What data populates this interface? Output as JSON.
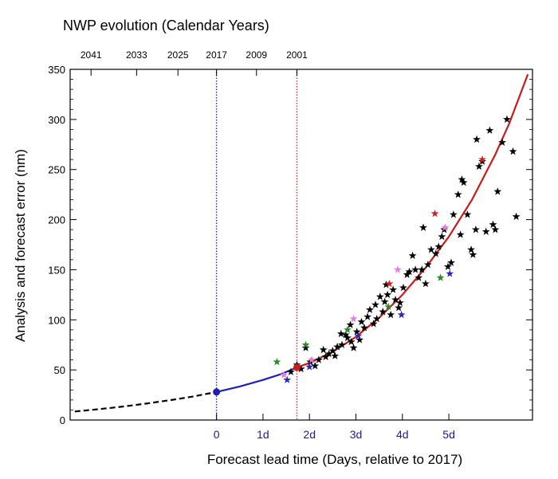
{
  "chart_data": {
    "type": "scatter",
    "title": "NWP evolution (Calendar Years)",
    "xlabel": "Forecast lead time (Days, relative to 2017)",
    "ylabel": "Analysis and forecast error (nm)",
    "xlim": [
      -3.15,
      6.8
    ],
    "ylim": [
      0,
      350
    ],
    "grid": false,
    "y_ticks": [
      "0",
      "50",
      "100",
      "150",
      "200",
      "250",
      "300",
      "350"
    ],
    "x_ticks": [
      {
        "value": 0,
        "label": "0"
      },
      {
        "value": 1,
        "label": "1d"
      },
      {
        "value": 2,
        "label": "2d"
      },
      {
        "value": 3,
        "label": "3d"
      },
      {
        "value": 4,
        "label": "4d"
      },
      {
        "value": 5,
        "label": "5d"
      }
    ],
    "top_axis_ticks": [
      {
        "value": -2.7,
        "label": "2041"
      },
      {
        "value": -1.72,
        "label": "2033"
      },
      {
        "value": -0.83,
        "label": "2025"
      },
      {
        "value": 0,
        "label": "2017"
      },
      {
        "value": 0.86,
        "label": "2009"
      },
      {
        "value": 1.73,
        "label": "2001"
      }
    ],
    "colors": {
      "past_curve": "#000000",
      "recent_curve": "#1f1fb4",
      "forecast_curve": "#cc1a1a",
      "marker_2017": "#1f1fb4",
      "marker_2001": "#cc1a1a",
      "vline_2017": "#2a2aa8",
      "vline_2001": "#cc3333",
      "lead_tick_labels": "#1a1a99"
    },
    "vertical_lines": [
      {
        "x": 0,
        "year": "2017",
        "color": "#2a2aa8"
      },
      {
        "x": 1.73,
        "year": "2001",
        "color": "#cc3333"
      }
    ],
    "series": [
      {
        "type": "line",
        "style": "dashed",
        "color": "#000000",
        "x": [
          -3.05,
          -2.5,
          -2.0,
          -1.5,
          -1.0,
          -0.5,
          0.0
        ],
        "y": [
          8.5,
          11.0,
          13.5,
          16.5,
          19.8,
          23.5,
          28.0
        ]
      },
      {
        "type": "line",
        "style": "solid",
        "color": "#1f1fb4",
        "x": [
          0.0,
          0.5,
          1.0,
          1.4,
          1.73
        ],
        "y": [
          28.0,
          33.5,
          40.0,
          46.0,
          52.5
        ]
      },
      {
        "type": "line",
        "style": "solid",
        "color": "#cc1a1a",
        "x": [
          1.73,
          2.0,
          2.5,
          3.0,
          3.5,
          4.0,
          4.5,
          5.0,
          5.5,
          6.0,
          6.3,
          6.7
        ],
        "y": [
          52.5,
          57.0,
          68.0,
          83.0,
          102.0,
          125.0,
          152.0,
          183.0,
          220.0,
          265.0,
          296.0,
          345.0
        ]
      },
      {
        "type": "scatter",
        "marker": "star",
        "color": "#000000",
        "points": [
          [
            1.6,
            48
          ],
          [
            1.73,
            55
          ],
          [
            1.82,
            51
          ],
          [
            1.92,
            72
          ],
          [
            2.02,
            58
          ],
          [
            2.12,
            54
          ],
          [
            2.2,
            60
          ],
          [
            2.3,
            70
          ],
          [
            2.35,
            63
          ],
          [
            2.42,
            66
          ],
          [
            2.5,
            69
          ],
          [
            2.55,
            64
          ],
          [
            2.6,
            73
          ],
          [
            2.7,
            75
          ],
          [
            2.78,
            85
          ],
          [
            2.82,
            82
          ],
          [
            2.9,
            78
          ],
          [
            2.95,
            72
          ],
          [
            3.02,
            88
          ],
          [
            3.08,
            80
          ],
          [
            3.12,
            98
          ],
          [
            3.18,
            92
          ],
          [
            3.25,
            103
          ],
          [
            3.3,
            110
          ],
          [
            3.38,
            96
          ],
          [
            3.42,
            115
          ],
          [
            3.45,
            101
          ],
          [
            3.52,
            123
          ],
          [
            3.58,
            108
          ],
          [
            3.62,
            118
          ],
          [
            3.68,
            125
          ],
          [
            3.75,
            105
          ],
          [
            3.8,
            130
          ],
          [
            3.85,
            120
          ],
          [
            3.95,
            117
          ],
          [
            4.02,
            132
          ],
          [
            4.1,
            145
          ],
          [
            4.15,
            148
          ],
          [
            4.22,
            164
          ],
          [
            4.28,
            150
          ],
          [
            4.35,
            142
          ],
          [
            4.42,
            150
          ],
          [
            4.5,
            136
          ],
          [
            4.55,
            155
          ],
          [
            4.62,
            170
          ],
          [
            4.72,
            166
          ],
          [
            4.78,
            173
          ],
          [
            4.85,
            183
          ],
          [
            4.9,
            190
          ],
          [
            4.98,
            153
          ],
          [
            5.05,
            157
          ],
          [
            5.1,
            205
          ],
          [
            5.2,
            225
          ],
          [
            5.28,
            240
          ],
          [
            5.32,
            237
          ],
          [
            5.4,
            205
          ],
          [
            5.48,
            170
          ],
          [
            5.52,
            165
          ],
          [
            5.58,
            190
          ],
          [
            5.65,
            253
          ],
          [
            5.72,
            258
          ],
          [
            5.8,
            188
          ],
          [
            5.88,
            289
          ],
          [
            5.95,
            195
          ],
          [
            6.05,
            228
          ],
          [
            6.15,
            277
          ],
          [
            6.25,
            300
          ],
          [
            6.38,
            268
          ],
          [
            6.45,
            203
          ],
          [
            5.6,
            280
          ],
          [
            2.88,
            95
          ],
          [
            3.65,
            135
          ],
          [
            4.45,
            192
          ],
          [
            5.25,
            185
          ],
          [
            6.0,
            190
          ],
          [
            3.92,
            112
          ],
          [
            2.68,
            86
          ]
        ]
      },
      {
        "type": "scatter",
        "marker": "star",
        "color": "#2a8a2a",
        "points": [
          [
            1.3,
            58
          ],
          [
            1.92,
            75
          ],
          [
            2.82,
            90
          ],
          [
            3.7,
            113
          ],
          [
            4.82,
            142
          ]
        ]
      },
      {
        "type": "scatter",
        "marker": "star",
        "color": "#2b2bb8",
        "points": [
          [
            1.52,
            40
          ],
          [
            2.0,
            53
          ],
          [
            3.05,
            84
          ],
          [
            3.98,
            105
          ],
          [
            5.02,
            146
          ]
        ]
      },
      {
        "type": "scatter",
        "marker": "star",
        "color": "#d11f1f",
        "points": [
          [
            3.72,
            136
          ],
          [
            4.7,
            206
          ],
          [
            5.72,
            260
          ]
        ]
      },
      {
        "type": "scatter",
        "marker": "star",
        "color": "#e67ae6",
        "points": [
          [
            1.45,
            45
          ],
          [
            2.05,
            60
          ],
          [
            2.95,
            101
          ],
          [
            3.9,
            150
          ],
          [
            4.92,
            192
          ]
        ]
      }
    ]
  }
}
